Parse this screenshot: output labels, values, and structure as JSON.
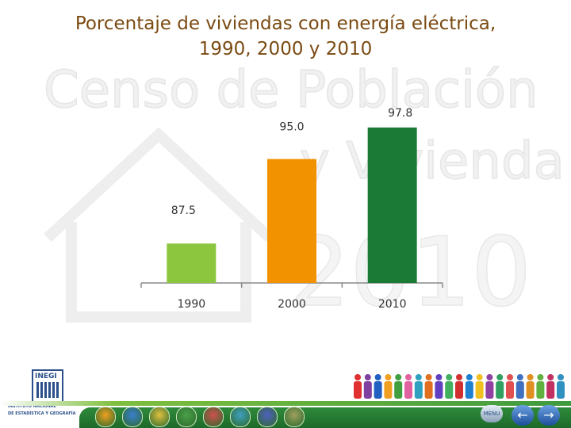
{
  "title_line1": "Porcentaje de viviendas con energía eléctrica,",
  "title_line2": "1990, 2000 y 2010",
  "watermark": {
    "line1": "Censo de Población",
    "line2": "y Vivienda",
    "line3": "2010"
  },
  "chart_data": {
    "type": "bar",
    "categories": [
      "1990",
      "2000",
      "2010"
    ],
    "values": [
      87.5,
      95.0,
      97.8
    ],
    "data_labels": [
      "87.5",
      "95.0",
      "97.8"
    ],
    "colors": [
      "#8cc63e",
      "#f39200",
      "#1b7a35"
    ],
    "title": "Porcentaje de viviendas con energía eléctrica, 1990, 2000 y 2010",
    "xlabel": "",
    "ylabel": "",
    "ylim": [
      84,
      98
    ],
    "grid": false,
    "legend": "none"
  },
  "logo": {
    "abbr": "INEGI",
    "line1": "INSTITUTO NACIONAL",
    "line2": "DE ESTADÍSTICA Y GEOGRAFÍA"
  },
  "nav": {
    "menu_label": "MENU",
    "back_icon": "arrow-left-icon",
    "forward_icon": "arrow-right-icon"
  },
  "bottom_icons": [
    "#f0a020",
    "#3a7fd0",
    "#e0c040",
    "#4aa04a",
    "#d05050",
    "#40a0c0",
    "#5060c0",
    "#a0a060"
  ],
  "people_colors": [
    "#e03030",
    "#8040a0",
    "#2060c0",
    "#f0a020",
    "#40a040",
    "#e060a0",
    "#30a0c0",
    "#e07020",
    "#6040c0",
    "#40b060",
    "#d03030",
    "#2080d0",
    "#f0c020",
    "#9040a0",
    "#30a060",
    "#e05050",
    "#4070c0",
    "#e09020",
    "#60b040",
    "#c03060",
    "#3090c0"
  ]
}
